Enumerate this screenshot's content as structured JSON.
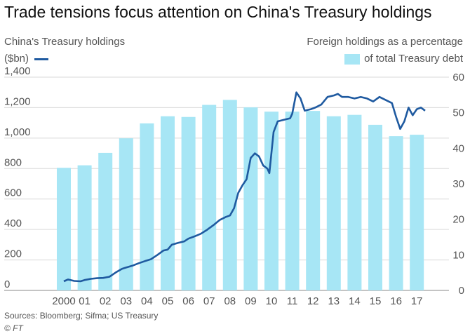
{
  "title": "Trade tensions focus attention on China's Treasury holdings",
  "left_axis_label_1": "China's Treasury holdings",
  "left_axis_label_2": "($bn)",
  "right_axis_label_1": "Foreign holdings as a percentage",
  "right_axis_label_2": "of total Treasury debt",
  "source": "Sources: Bloomberg; Sifma; US Treasury",
  "credit": "© FT",
  "colors": {
    "bars": "#a7e6f5",
    "line": "#1f5aa0",
    "grid": "#d9d9d9"
  },
  "chart_data": {
    "type": "bar",
    "x_tick_labels": [
      "2000",
      "01",
      "02",
      "03",
      "04",
      "05",
      "06",
      "07",
      "08",
      "09",
      "10",
      "11",
      "12",
      "13",
      "14",
      "15",
      "16",
      "17"
    ],
    "y_left": {
      "ticks": [
        "0",
        "200",
        "400",
        "600",
        "800",
        "1,000",
        "1,200",
        "1,400"
      ],
      "lim": [
        0,
        1400
      ]
    },
    "y_right": {
      "ticks": [
        "0",
        "10",
        "20",
        "30",
        "40",
        "50",
        "60"
      ],
      "lim": [
        0,
        60
      ]
    },
    "series": [
      {
        "name": "Foreign holdings as a percentage of total Treasury debt",
        "axis": "right",
        "type": "bar",
        "x": [
          2000,
          2001,
          2002,
          2003,
          2004,
          2005,
          2006,
          2007,
          2008,
          2009,
          2010,
          2011,
          2012,
          2013,
          2014,
          2015,
          2016,
          2017
        ],
        "values": [
          34.5,
          35.2,
          38.7,
          42.8,
          47.0,
          49.0,
          48.8,
          52.2,
          53.6,
          51.5,
          50.3,
          50.3,
          50.5,
          49.0,
          49.4,
          46.6,
          43.4,
          43.8
        ]
      },
      {
        "name": "China's Treasury holdings",
        "axis": "left",
        "type": "line",
        "x": [
          2000.0,
          2000.2,
          2000.5,
          2000.8,
          2001.0,
          2001.3,
          2001.6,
          2001.9,
          2002.2,
          2002.5,
          2002.8,
          2003.0,
          2003.3,
          2003.6,
          2003.9,
          2004.2,
          2004.5,
          2004.8,
          2005.0,
          2005.2,
          2005.5,
          2005.8,
          2006.0,
          2006.3,
          2006.6,
          2006.9,
          2007.2,
          2007.5,
          2007.8,
          2008.0,
          2008.2,
          2008.4,
          2008.6,
          2008.8,
          2009.0,
          2009.2,
          2009.4,
          2009.6,
          2009.8,
          2009.9,
          2010.1,
          2010.3,
          2010.6,
          2010.9,
          2011.0,
          2011.2,
          2011.4,
          2011.6,
          2011.9,
          2012.1,
          2012.4,
          2012.7,
          2013.0,
          2013.2,
          2013.4,
          2013.7,
          2014.0,
          2014.3,
          2014.6,
          2014.9,
          2015.2,
          2015.5,
          2015.8,
          2016.0,
          2016.2,
          2016.4,
          2016.6,
          2016.8,
          2017.0,
          2017.2,
          2017.4
        ],
        "values": [
          60,
          72,
          62,
          60,
          68,
          76,
          80,
          82,
          90,
          118,
          142,
          150,
          162,
          178,
          192,
          205,
          232,
          262,
          268,
          300,
          312,
          322,
          340,
          355,
          372,
          398,
          428,
          462,
          482,
          492,
          540,
          640,
          690,
          730,
          870,
          900,
          880,
          820,
          800,
          770,
          1040,
          1110,
          1120,
          1130,
          1160,
          1300,
          1260,
          1180,
          1190,
          1200,
          1220,
          1270,
          1280,
          1290,
          1270,
          1270,
          1260,
          1270,
          1260,
          1240,
          1270,
          1250,
          1230,
          1140,
          1060,
          1110,
          1200,
          1150,
          1190,
          1200,
          1180
        ]
      }
    ]
  }
}
